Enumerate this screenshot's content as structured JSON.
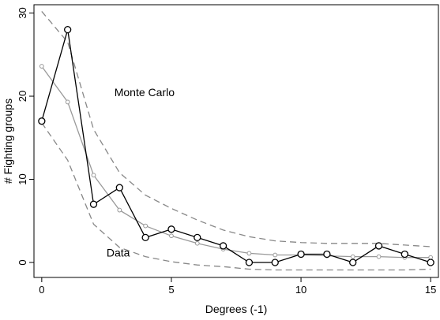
{
  "chart_data": {
    "type": "line",
    "xlabel": "Degrees (-1)",
    "ylabel": "# Fighting groups",
    "xlim": [
      -0.3,
      15.3
    ],
    "ylim": [
      -1.8,
      31
    ],
    "xticks": [
      0,
      5,
      10,
      15
    ],
    "yticks": [
      0,
      10,
      20,
      30
    ],
    "grid": false,
    "annotations": [
      {
        "text": "Monte Carlo",
        "x": 2.8,
        "y": 20,
        "color": "#888888"
      },
      {
        "text": "Data",
        "x": 2.5,
        "y": 0.7,
        "color": "#000000"
      }
    ],
    "series": [
      {
        "role": "data",
        "color": "#000000",
        "marker": "circle",
        "x": [
          0,
          1,
          2,
          3,
          4,
          5,
          6,
          7,
          8,
          9,
          10,
          11,
          12,
          13,
          14,
          15
        ],
        "y": [
          17,
          28,
          7,
          9,
          3,
          4,
          3,
          2,
          0,
          0,
          1,
          1,
          0,
          2,
          1,
          0
        ]
      },
      {
        "role": "monte-carlo-mean",
        "color": "#999999",
        "marker": "circle-small",
        "x": [
          0,
          1,
          2,
          3,
          4,
          5,
          6,
          7,
          8,
          9,
          10,
          11,
          12,
          13,
          14,
          15
        ],
        "y": [
          23.6,
          19.3,
          10.5,
          6.3,
          4.4,
          3.2,
          2.3,
          1.6,
          1.1,
          0.9,
          0.9,
          0.8,
          0.7,
          0.7,
          0.6,
          0.6
        ]
      },
      {
        "role": "monte-carlo-upper",
        "color": "#888888",
        "dashed": true,
        "x": [
          0,
          1,
          2,
          3,
          4,
          5,
          6,
          7,
          8,
          9,
          10,
          11,
          12,
          13,
          14,
          15
        ],
        "y": [
          30.2,
          26.5,
          16,
          10.8,
          8.1,
          6.5,
          5.1,
          3.9,
          3.1,
          2.6,
          2.4,
          2.3,
          2.3,
          2.3,
          2.1,
          1.9
        ]
      },
      {
        "role": "monte-carlo-lower",
        "color": "#888888",
        "dashed": true,
        "x": [
          0,
          1,
          2,
          3,
          4,
          5,
          6,
          7,
          8,
          9,
          10,
          11,
          12,
          13,
          14,
          15
        ],
        "y": [
          16.8,
          12.3,
          4.6,
          1.8,
          0.7,
          0.1,
          -0.3,
          -0.5,
          -0.8,
          -0.9,
          -0.9,
          -0.9,
          -0.9,
          -0.9,
          -0.9,
          -0.8
        ]
      }
    ]
  }
}
